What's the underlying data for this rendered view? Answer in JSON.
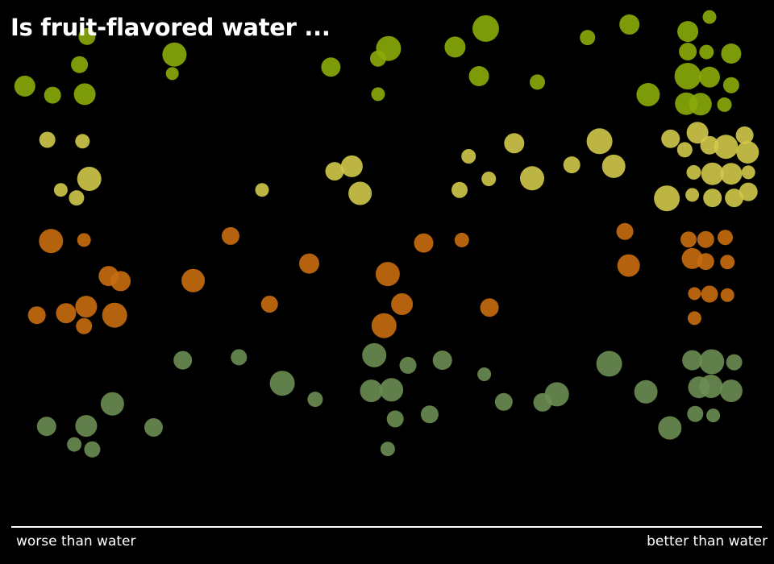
{
  "title": "Is fruit-flavored water ...",
  "axis": {
    "left_label": "worse than water",
    "right_label": "better than water"
  },
  "colors": {
    "background": "#000000",
    "text": "#ffffff",
    "axis": "#ffffff",
    "green": "#8bab09",
    "yellow": "#d2c94a",
    "orange": "#c86d0f",
    "sage": "#6b8d52"
  },
  "chart_data": {
    "type": "scatter",
    "title": "Is fruit-flavored water ...",
    "xlabel": "",
    "ylabel": "",
    "x_axis_end_labels": [
      "worse than water",
      "better than water"
    ],
    "xlim": [
      0,
      1000
    ],
    "ylim": [
      0,
      1000
    ],
    "grid": false,
    "legend": "none",
    "series": [
      {
        "color": "#8bab09",
        "points": [
          {
            "x": 99,
            "y": 940,
            "size": 10.5
          },
          {
            "x": 89,
            "y": 884,
            "size": 10.5
          },
          {
            "x": 16,
            "y": 841,
            "size": 13.0
          },
          {
            "x": 53,
            "y": 823,
            "size": 10.5
          },
          {
            "x": 96,
            "y": 825,
            "size": 13.5
          },
          {
            "x": 216,
            "y": 904,
            "size": 15.0
          },
          {
            "x": 213,
            "y": 866,
            "size": 8.0
          },
          {
            "x": 425,
            "y": 879,
            "size": 12.0
          },
          {
            "x": 488,
            "y": 896,
            "size": 10.0
          },
          {
            "x": 502,
            "y": 916,
            "size": 15.5
          },
          {
            "x": 488,
            "y": 825,
            "size": 8.5
          },
          {
            "x": 591,
            "y": 919,
            "size": 13.0
          },
          {
            "x": 632,
            "y": 956,
            "size": 16.5
          },
          {
            "x": 623,
            "y": 861,
            "size": 12.5
          },
          {
            "x": 701,
            "y": 849,
            "size": 9.5
          },
          {
            "x": 768,
            "y": 938,
            "size": 9.5
          },
          {
            "x": 824,
            "y": 964,
            "size": 12.5
          },
          {
            "x": 849,
            "y": 824,
            "size": 14.5
          },
          {
            "x": 931,
            "y": 979,
            "size": 8.5
          },
          {
            "x": 902,
            "y": 950,
            "size": 13.0
          },
          {
            "x": 902,
            "y": 910,
            "size": 11.0
          },
          {
            "x": 927,
            "y": 909,
            "size": 9.0
          },
          {
            "x": 960,
            "y": 906,
            "size": 12.5
          },
          {
            "x": 902,
            "y": 861,
            "size": 16.5
          },
          {
            "x": 931,
            "y": 859,
            "size": 13.0
          },
          {
            "x": 960,
            "y": 843,
            "size": 10.0
          },
          {
            "x": 900,
            "y": 806,
            "size": 14.0
          },
          {
            "x": 919,
            "y": 805,
            "size": 14.0
          },
          {
            "x": 951,
            "y": 804,
            "size": 9.0
          }
        ]
      },
      {
        "color": "#d2c94a",
        "points": [
          {
            "x": 46,
            "y": 734,
            "size": 10.0
          },
          {
            "x": 93,
            "y": 731,
            "size": 9.0
          },
          {
            "x": 102,
            "y": 656,
            "size": 15.0
          },
          {
            "x": 64,
            "y": 634,
            "size": 8.5
          },
          {
            "x": 85,
            "y": 618,
            "size": 9.5
          },
          {
            "x": 333,
            "y": 634,
            "size": 8.5
          },
          {
            "x": 430,
            "y": 671,
            "size": 11.5
          },
          {
            "x": 453,
            "y": 681,
            "size": 13.5
          },
          {
            "x": 464,
            "y": 627,
            "size": 14.5
          },
          {
            "x": 609,
            "y": 701,
            "size": 9.0
          },
          {
            "x": 636,
            "y": 656,
            "size": 9.0
          },
          {
            "x": 597,
            "y": 634,
            "size": 10.0
          },
          {
            "x": 670,
            "y": 727,
            "size": 12.5
          },
          {
            "x": 694,
            "y": 657,
            "size": 15.0
          },
          {
            "x": 747,
            "y": 684,
            "size": 10.5
          },
          {
            "x": 784,
            "y": 731,
            "size": 16.0
          },
          {
            "x": 803,
            "y": 681,
            "size": 14.5
          },
          {
            "x": 879,
            "y": 736,
            "size": 11.5
          },
          {
            "x": 898,
            "y": 714,
            "size": 9.5
          },
          {
            "x": 915,
            "y": 748,
            "size": 13.5
          },
          {
            "x": 931,
            "y": 723,
            "size": 11.5
          },
          {
            "x": 953,
            "y": 720,
            "size": 15.0
          },
          {
            "x": 978,
            "y": 743,
            "size": 11.0
          },
          {
            "x": 982,
            "y": 709,
            "size": 14.0
          },
          {
            "x": 910,
            "y": 669,
            "size": 9.0
          },
          {
            "x": 935,
            "y": 666,
            "size": 14.0
          },
          {
            "x": 960,
            "y": 666,
            "size": 13.5
          },
          {
            "x": 983,
            "y": 669,
            "size": 8.5
          },
          {
            "x": 874,
            "y": 617,
            "size": 16.0
          },
          {
            "x": 908,
            "y": 624,
            "size": 8.5
          },
          {
            "x": 935,
            "y": 618,
            "size": 11.5
          },
          {
            "x": 964,
            "y": 618,
            "size": 11.5
          },
          {
            "x": 983,
            "y": 630,
            "size": 11.5
          }
        ]
      },
      {
        "color": "#c86d0f",
        "points": [
          {
            "x": 51,
            "y": 532,
            "size": 15.0
          },
          {
            "x": 95,
            "y": 534,
            "size": 8.5
          },
          {
            "x": 291,
            "y": 542,
            "size": 11.0
          },
          {
            "x": 128,
            "y": 462,
            "size": 12.5
          },
          {
            "x": 144,
            "y": 452,
            "size": 12.5
          },
          {
            "x": 241,
            "y": 453,
            "size": 14.5
          },
          {
            "x": 396,
            "y": 487,
            "size": 12.5
          },
          {
            "x": 549,
            "y": 528,
            "size": 12.0
          },
          {
            "x": 600,
            "y": 534,
            "size": 9.0
          },
          {
            "x": 818,
            "y": 551,
            "size": 10.5
          },
          {
            "x": 823,
            "y": 483,
            "size": 14.0
          },
          {
            "x": 903,
            "y": 535,
            "size": 10.0
          },
          {
            "x": 926,
            "y": 535,
            "size": 10.5
          },
          {
            "x": 952,
            "y": 539,
            "size": 9.5
          },
          {
            "x": 908,
            "y": 497,
            "size": 13.0
          },
          {
            "x": 926,
            "y": 491,
            "size": 10.5
          },
          {
            "x": 955,
            "y": 490,
            "size": 9.0
          },
          {
            "x": 501,
            "y": 466,
            "size": 15.0
          },
          {
            "x": 520,
            "y": 406,
            "size": 13.5
          },
          {
            "x": 496,
            "y": 363,
            "size": 15.5
          },
          {
            "x": 343,
            "y": 406,
            "size": 10.5
          },
          {
            "x": 637,
            "y": 399,
            "size": 11.5
          },
          {
            "x": 911,
            "y": 427,
            "size": 8.0
          },
          {
            "x": 931,
            "y": 426,
            "size": 10.5
          },
          {
            "x": 955,
            "y": 424,
            "size": 8.5
          },
          {
            "x": 911,
            "y": 378,
            "size": 8.5
          },
          {
            "x": 32,
            "y": 384,
            "size": 11.0
          },
          {
            "x": 71,
            "y": 388,
            "size": 12.5
          },
          {
            "x": 98,
            "y": 401,
            "size": 13.5
          },
          {
            "x": 136,
            "y": 384,
            "size": 15.5
          },
          {
            "x": 95,
            "y": 362,
            "size": 10.0
          }
        ]
      },
      {
        "color": "#6b8d52",
        "points": [
          {
            "x": 227,
            "y": 294,
            "size": 11.5
          },
          {
            "x": 302,
            "y": 300,
            "size": 10.0
          },
          {
            "x": 483,
            "y": 304,
            "size": 15.0
          },
          {
            "x": 528,
            "y": 284,
            "size": 10.5
          },
          {
            "x": 574,
            "y": 294,
            "size": 12.0
          },
          {
            "x": 360,
            "y": 248,
            "size": 15.5
          },
          {
            "x": 404,
            "y": 216,
            "size": 9.5
          },
          {
            "x": 479,
            "y": 233,
            "size": 14.0
          },
          {
            "x": 506,
            "y": 235,
            "size": 14.5
          },
          {
            "x": 630,
            "y": 266,
            "size": 8.5
          },
          {
            "x": 797,
            "y": 287,
            "size": 16.0
          },
          {
            "x": 908,
            "y": 294,
            "size": 12.5
          },
          {
            "x": 934,
            "y": 291,
            "size": 15.5
          },
          {
            "x": 964,
            "y": 290,
            "size": 10.0
          },
          {
            "x": 917,
            "y": 240,
            "size": 13.5
          },
          {
            "x": 933,
            "y": 242,
            "size": 14.5
          },
          {
            "x": 960,
            "y": 233,
            "size": 14.0
          },
          {
            "x": 846,
            "y": 231,
            "size": 14.5
          },
          {
            "x": 727,
            "y": 226,
            "size": 15.0
          },
          {
            "x": 708,
            "y": 210,
            "size": 11.5
          },
          {
            "x": 656,
            "y": 211,
            "size": 11.0
          },
          {
            "x": 557,
            "y": 186,
            "size": 11.0
          },
          {
            "x": 511,
            "y": 177,
            "size": 10.5
          },
          {
            "x": 133,
            "y": 207,
            "size": 14.5
          },
          {
            "x": 45,
            "y": 162,
            "size": 12.0
          },
          {
            "x": 98,
            "y": 163,
            "size": 13.5
          },
          {
            "x": 188,
            "y": 160,
            "size": 11.5
          },
          {
            "x": 82,
            "y": 126,
            "size": 9.0
          },
          {
            "x": 106,
            "y": 116,
            "size": 10.0
          },
          {
            "x": 501,
            "y": 117,
            "size": 9.0
          },
          {
            "x": 878,
            "y": 159,
            "size": 14.5
          },
          {
            "x": 912,
            "y": 187,
            "size": 10.0
          },
          {
            "x": 936,
            "y": 184,
            "size": 8.5
          }
        ]
      }
    ]
  }
}
